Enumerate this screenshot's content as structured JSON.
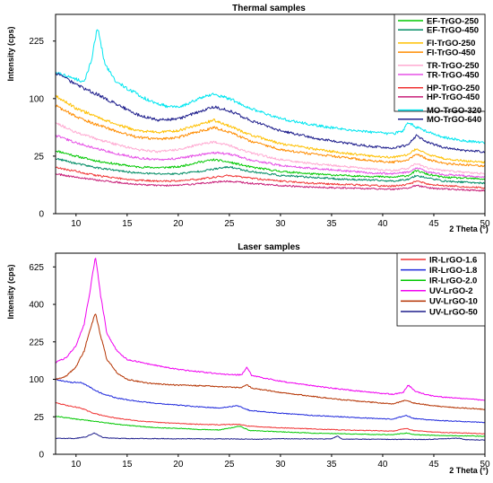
{
  "chart_data": [
    {
      "type": "line",
      "title": "Thermal samples",
      "xlabel": "2 Theta (°)",
      "ylabel": "Intensity (cps)",
      "xlim": [
        8,
        50
      ],
      "xticks": [
        10,
        15,
        20,
        25,
        30,
        35,
        40,
        45,
        50
      ],
      "yscale": "sqrt",
      "yticks": [
        0,
        25,
        100,
        225
      ],
      "ylim": [
        0,
        300
      ],
      "legend_position": "top-right",
      "grid": false,
      "series": [
        {
          "name": "EF-TrGO-250",
          "color": "#00c800",
          "x": [
            8,
            10,
            12,
            14,
            16,
            18,
            20,
            22,
            23.5,
            25,
            27,
            30,
            33,
            36,
            39,
            41,
            42.5,
            43.3,
            44.5,
            46,
            48,
            50
          ],
          "y": [
            30,
            25,
            21,
            18.5,
            16.5,
            16,
            16.5,
            20,
            22,
            20,
            16.5,
            13.5,
            12,
            11,
            10.5,
            10,
            11,
            14,
            11.5,
            10,
            9.5,
            9
          ]
        },
        {
          "name": "EF-TrGO-450",
          "color": "#008c64",
          "x": [
            8,
            10,
            12,
            14,
            16,
            18,
            20,
            22,
            23.5,
            25,
            27,
            30,
            33,
            36,
            39,
            41,
            42.5,
            43.3,
            44.5,
            46,
            48,
            50
          ],
          "y": [
            23,
            19,
            16,
            14,
            12.5,
            12,
            12,
            13.5,
            15,
            16.5,
            13.5,
            11,
            10,
            9,
            8.5,
            8,
            9,
            11,
            9.5,
            8,
            7.5,
            7
          ]
        },
        {
          "name": "FI-TrGO-250",
          "color": "#ffc000",
          "x": [
            8,
            10,
            12,
            14,
            16,
            18,
            20,
            22,
            23.5,
            25,
            27,
            30,
            33,
            36,
            39,
            41,
            42.5,
            43.3,
            44.5,
            46,
            48,
            50
          ],
          "y": [
            104,
            84,
            71,
            60,
            52,
            50,
            52,
            60,
            66,
            58,
            47,
            37,
            32,
            28,
            25,
            24,
            26,
            32,
            26,
            23,
            21,
            20
          ]
        },
        {
          "name": "FI-TrGO-450",
          "color": "#ff8c00",
          "x": [
            8,
            10,
            12,
            14,
            16,
            18,
            20,
            22,
            23.5,
            25,
            27,
            30,
            33,
            36,
            39,
            41,
            42.5,
            43.3,
            44.5,
            46,
            48,
            50
          ],
          "y": [
            88,
            71,
            60,
            51,
            44,
            42,
            44,
            51,
            56,
            50,
            40,
            31,
            27,
            24,
            21,
            20,
            22,
            27,
            22,
            19,
            18,
            17
          ]
        },
        {
          "name": "TR-TrGO-250",
          "color": "#ffaad2",
          "x": [
            8,
            10,
            12,
            14,
            16,
            18,
            20,
            22,
            23.5,
            25,
            27,
            30,
            33,
            36,
            39,
            41,
            42.5,
            43.3,
            44.5,
            46,
            48,
            50
          ],
          "y": [
            62,
            50,
            42,
            36,
            31,
            29,
            31,
            36,
            39,
            35,
            28,
            22,
            19,
            17,
            15,
            14,
            15.5,
            19,
            15.5,
            14,
            13,
            12
          ]
        },
        {
          "name": "TR-TrGO-450",
          "color": "#e650e6",
          "x": [
            8,
            10,
            12,
            14,
            16,
            18,
            20,
            22,
            23.5,
            25,
            27,
            30,
            33,
            36,
            39,
            41,
            42.5,
            43.3,
            44.5,
            46,
            48,
            50
          ],
          "y": [
            46,
            38,
            32,
            27,
            23.5,
            22,
            23,
            26,
            28,
            27,
            22,
            17.5,
            15.5,
            14,
            12.5,
            12,
            13,
            16,
            13,
            11.5,
            11,
            10
          ]
        },
        {
          "name": "HP-TrGO-250",
          "color": "#f03232",
          "x": [
            8,
            10,
            12,
            14,
            16,
            18,
            20,
            22,
            23.5,
            25,
            27,
            30,
            33,
            36,
            39,
            41,
            42.5,
            43.3,
            44.5,
            46,
            48,
            50
          ],
          "y": [
            16,
            13.5,
            11,
            9.5,
            8.5,
            8,
            8.2,
            9,
            10,
            11,
            9.5,
            8,
            7,
            6.5,
            6,
            5.8,
            6.5,
            8,
            6.5,
            6,
            5.5,
            5
          ]
        },
        {
          "name": "HP-TrGO-450",
          "color": "#c81e78",
          "x": [
            8,
            10,
            12,
            14,
            16,
            18,
            20,
            22,
            23.5,
            25,
            27,
            30,
            33,
            36,
            39,
            41,
            42.5,
            43.3,
            44.5,
            46,
            48,
            50
          ],
          "y": [
            12,
            10,
            8.5,
            7.5,
            6.5,
            6,
            6,
            6.8,
            7.5,
            8,
            7,
            6,
            5.3,
            5,
            4.7,
            4.5,
            5,
            6,
            5,
            4.6,
            4.3,
            4
          ]
        },
        {
          "name": "MO-TrGO-320",
          "color": "#00e6f0",
          "x": [
            8,
            9.5,
            10.8,
            11.5,
            12.1,
            12.8,
            13.8,
            15,
            17,
            19,
            20.5,
            22,
            23.5,
            25,
            27,
            30,
            33,
            36,
            39,
            41,
            42,
            42.5,
            43.2,
            44.5,
            46,
            48,
            50
          ],
          "y": [
            150,
            140,
            132,
            175,
            262,
            170,
            135,
            118,
            98,
            86,
            88,
            100,
            108,
            100,
            84,
            68,
            60,
            54,
            50,
            48,
            52,
            63,
            57,
            50,
            44,
            40,
            38
          ]
        },
        {
          "name": "MO-TrGO-640",
          "color": "#1e1e8c",
          "x": [
            8,
            10,
            12,
            14,
            16,
            18,
            20,
            22,
            23.5,
            25,
            27,
            30,
            33,
            36,
            39,
            41,
            42.5,
            43.3,
            44.5,
            46,
            48,
            50
          ],
          "y": [
            150,
            125,
            108,
            90,
            74,
            66,
            68,
            78,
            86,
            80,
            66,
            52,
            44,
            38,
            34,
            32,
            36,
            46,
            38,
            33,
            30,
            29
          ]
        }
      ]
    },
    {
      "type": "line",
      "title": "Laser samples",
      "xlabel": "2 Theta (°)",
      "ylabel": "Intensity (cps)",
      "xlim": [
        8,
        50
      ],
      "xticks": [
        10,
        15,
        20,
        25,
        30,
        35,
        40,
        45,
        50
      ],
      "yscale": "sqrt",
      "yticks": [
        0,
        25,
        100,
        225,
        400,
        625
      ],
      "ylim": [
        0,
        720
      ],
      "legend_position": "top-right",
      "grid": false,
      "series": [
        {
          "name": "IR-LrGO-1.6",
          "color": "#f03232",
          "x": [
            8,
            9.5,
            10.5,
            11.5,
            12.5,
            14,
            16,
            18,
            20,
            22,
            24,
            25.8,
            27,
            30,
            33,
            36,
            39,
            41,
            42.3,
            43,
            44.5,
            46,
            48,
            50
          ],
          "y": [
            47,
            41,
            38,
            31,
            27,
            23,
            20,
            18,
            17,
            16,
            15.5,
            16,
            14,
            12.5,
            11.5,
            10.5,
            10,
            9.5,
            12,
            10,
            9,
            8.5,
            8,
            7.5
          ]
        },
        {
          "name": "IR-LrGO-1.8",
          "color": "#1e28dc",
          "x": [
            8,
            9.5,
            10.5,
            11.5,
            12.5,
            14,
            16,
            18,
            20,
            22,
            24,
            25.8,
            27,
            30,
            33,
            36,
            39,
            41,
            42.3,
            43,
            44.5,
            46,
            48,
            50
          ],
          "y": [
            100,
            92,
            92,
            78,
            66,
            56,
            50,
            46,
            43,
            40,
            38,
            42,
            34,
            30,
            27,
            25,
            23,
            22,
            27,
            23,
            21,
            20,
            19,
            18
          ]
        },
        {
          "name": "IR-LrGO-2.0",
          "color": "#00c800",
          "x": [
            8,
            10,
            12,
            14,
            16,
            18,
            20,
            22,
            24,
            25.5,
            26,
            27,
            30,
            33,
            36,
            39,
            41,
            42.3,
            43,
            44.5,
            46,
            48,
            50
          ],
          "y": [
            26,
            22,
            19,
            16,
            14,
            12.5,
            12,
            11,
            10.5,
            13,
            14,
            10,
            9,
            8,
            7.5,
            7,
            6.8,
            8,
            7,
            6.5,
            6.2,
            6,
            5.8
          ]
        },
        {
          "name": "UV-LrGO-2",
          "color": "#f000f0",
          "x": [
            8,
            9,
            10,
            10.8,
            11.4,
            11.9,
            12.4,
            13,
            14,
            15,
            17,
            20,
            23,
            25,
            26.2,
            26.7,
            27.2,
            30,
            33,
            36,
            39,
            41,
            42,
            42.5,
            43.2,
            44.5,
            46,
            48,
            50
          ],
          "y": [
            150,
            165,
            210,
            300,
            480,
            700,
            450,
            260,
            190,
            160,
            145,
            128,
            118,
            113,
            112,
            135,
            110,
            95,
            84,
            75,
            68,
            64,
            68,
            85,
            70,
            62,
            58,
            55,
            52
          ]
        },
        {
          "name": "UV-LrGO-10",
          "color": "#b43200",
          "x": [
            8,
            9,
            10,
            10.8,
            11.4,
            11.9,
            12.4,
            13,
            14,
            15,
            17,
            20,
            23,
            25,
            26.2,
            26.7,
            27.2,
            30,
            33,
            36,
            39,
            41,
            42.3,
            43,
            44.5,
            46,
            48,
            50
          ],
          "y": [
            100,
            108,
            135,
            190,
            280,
            355,
            250,
            160,
            118,
            100,
            90,
            85,
            83,
            80,
            79,
            86,
            78,
            68,
            60,
            53,
            48,
            45,
            52,
            47,
            43,
            40,
            38,
            36
          ]
        },
        {
          "name": "UV-LrGO-50",
          "color": "#1e1e8c",
          "x": [
            8,
            10,
            11,
            11.8,
            12.6,
            14,
            16,
            20,
            25,
            28,
            30,
            35,
            35.6,
            36,
            40,
            44,
            47.5,
            48,
            50
          ],
          "y": [
            4.5,
            4.5,
            5.5,
            8,
            5,
            4.5,
            4.4,
            4.3,
            4.2,
            4,
            4.3,
            4.2,
            6,
            4.1,
            4,
            3.9,
            4.6,
            3.8,
            3.6
          ]
        }
      ]
    }
  ]
}
